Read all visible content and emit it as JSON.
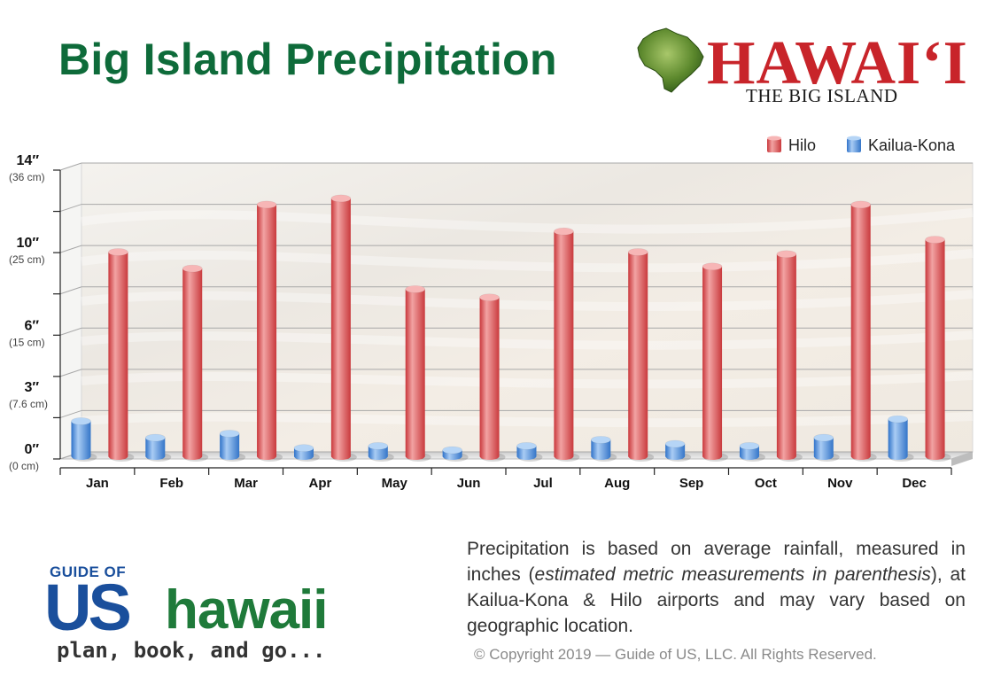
{
  "page": {
    "title": "Big Island Precipitation",
    "brand": {
      "name": "HAWAIʻI",
      "subtitle": "THE BIG ISLAND"
    },
    "note": {
      "prefix": "Precipitation is based on average rainfall, measured in inches (",
      "italic": "estimated metric measurements in parenthesis",
      "suffix": "), at Kailua-Kona & Hilo airports and may vary based on geographic location."
    },
    "copyright": "© Copyright 2019 — Guide of US, LLC. All Rights Reserved.",
    "logo": {
      "top": "GUIDE OF",
      "us": "US",
      "hawaii": "hawaii",
      "tagline": "plan, book, and go..."
    }
  },
  "colors": {
    "title": "#0e6b3a",
    "brand_red": "#c8242a",
    "hilo": "#e0595c",
    "kona": "#4a8fe0"
  },
  "chart_data": {
    "type": "bar",
    "categories": [
      "Jan",
      "Feb",
      "Mar",
      "Apr",
      "May",
      "Jun",
      "Jul",
      "Aug",
      "Sep",
      "Oct",
      "Nov",
      "Dec"
    ],
    "series": [
      {
        "name": "Hilo",
        "values": [
          9.9,
          9.1,
          12.2,
          12.5,
          8.1,
          7.7,
          10.9,
          9.9,
          9.2,
          9.8,
          12.2,
          10.5
        ]
      },
      {
        "name": "Kailua-Kona",
        "values": [
          1.7,
          0.9,
          1.1,
          0.4,
          0.5,
          0.3,
          0.5,
          0.8,
          0.6,
          0.5,
          0.9,
          1.8
        ]
      }
    ],
    "y_ticks": [
      {
        "value": 0,
        "label": "0″",
        "sublabel": "(0 cm)"
      },
      {
        "value": 3,
        "label": "3″",
        "sublabel": "(7.6 cm)"
      },
      {
        "value": 6,
        "label": "6″",
        "sublabel": "(15 cm)"
      },
      {
        "value": 10,
        "label": "10″",
        "sublabel": "(25 cm)"
      },
      {
        "value": 14,
        "label": "14″",
        "sublabel": "(36 cm)"
      }
    ],
    "gridlines": [
      0,
      2,
      4,
      6,
      8,
      10,
      12,
      14
    ],
    "ylim": [
      0,
      14
    ],
    "legend_position": "top-right",
    "grid": true
  }
}
